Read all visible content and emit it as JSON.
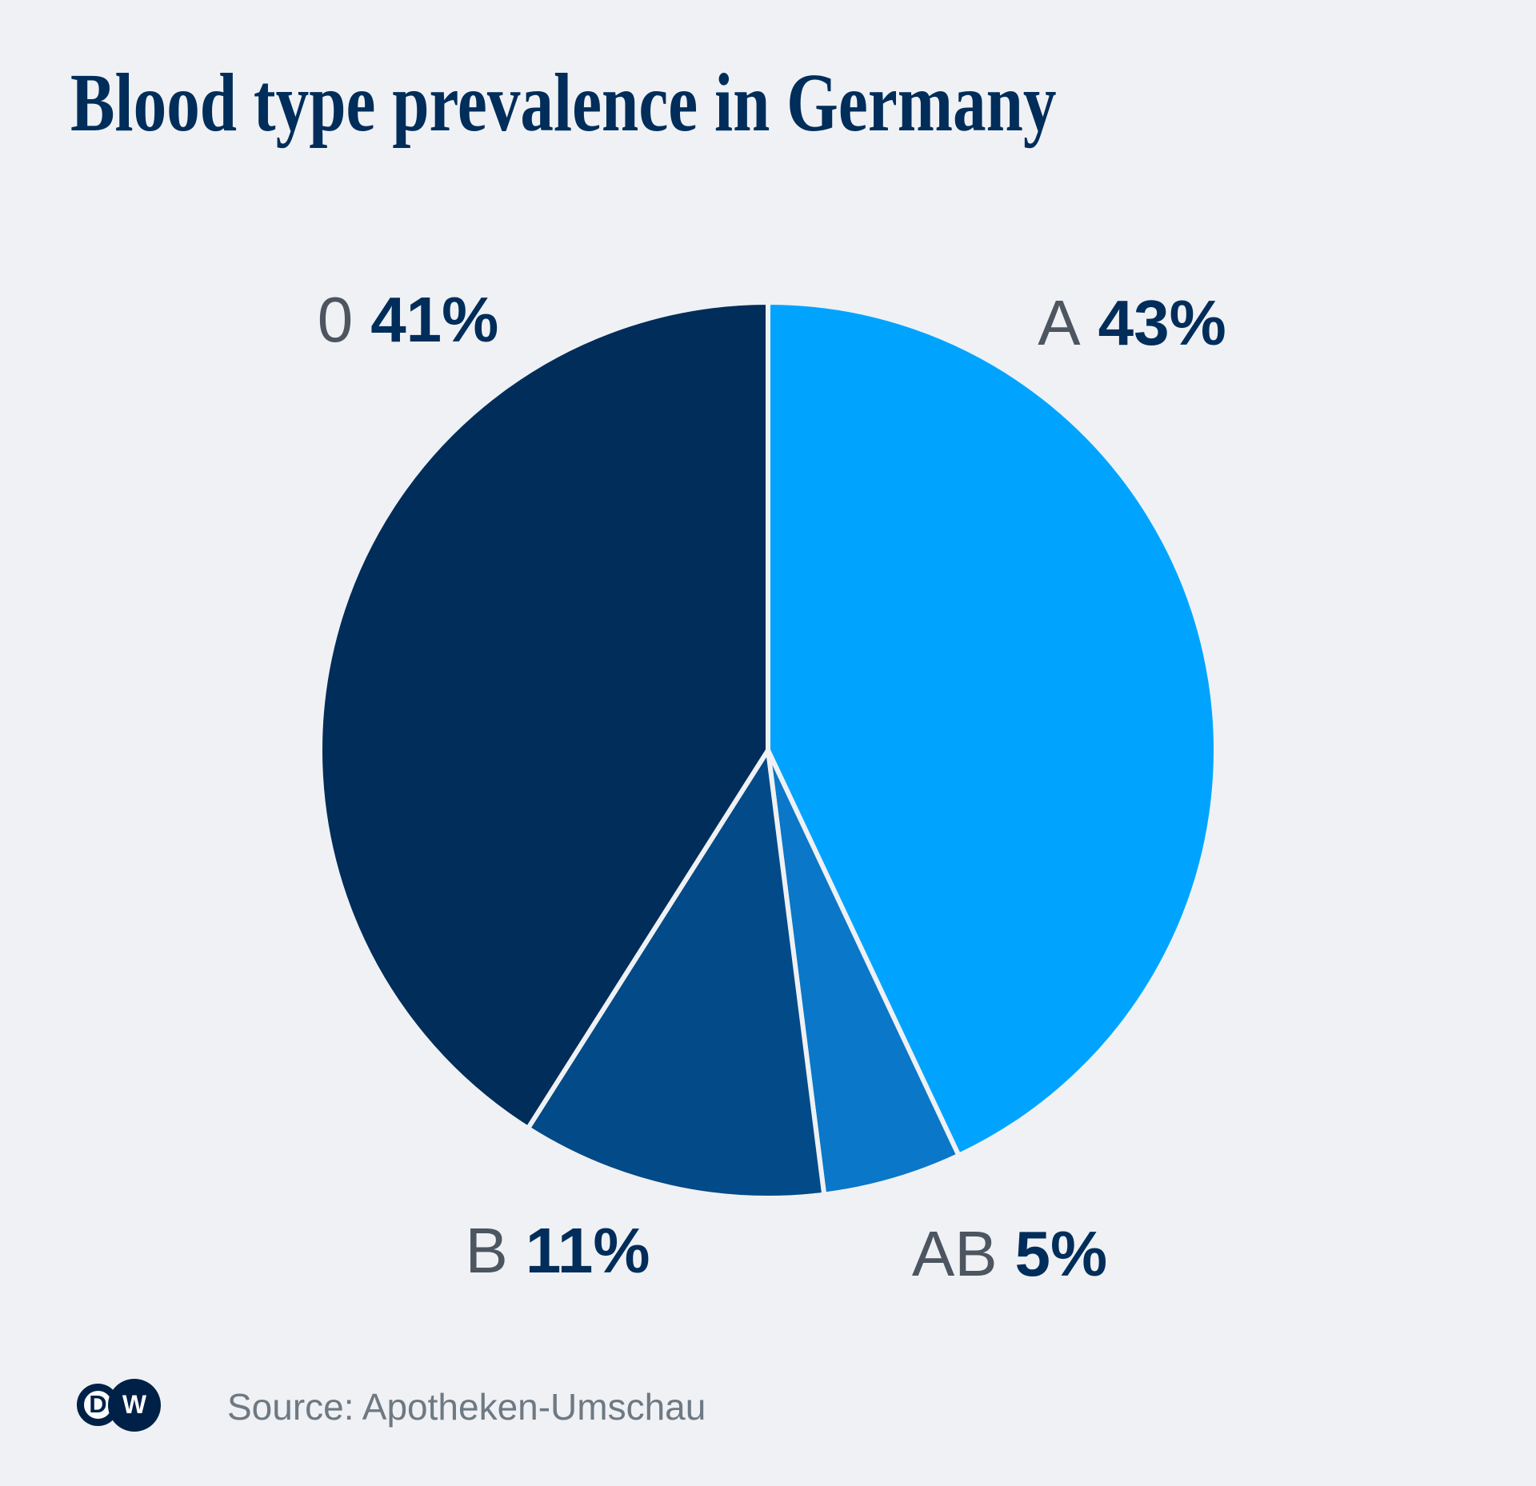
{
  "header": {
    "title": "Blood type prevalence in Germany",
    "title_color": "#002d5a"
  },
  "chart_data": {
    "type": "pie",
    "title": "Blood type prevalence in Germany",
    "unit": "%",
    "direction": "clockwise",
    "start_angle_deg": 0,
    "total": 100,
    "divider_color": "#eff1f4",
    "slices": [
      {
        "label": "A",
        "value": 43,
        "display": "43%",
        "color": "#00a4ff"
      },
      {
        "label": "AB",
        "value": 5,
        "display": "5%",
        "color": "#0a77c8"
      },
      {
        "label": "B",
        "value": 11,
        "display": "11%",
        "color": "#024a88"
      },
      {
        "label": "0",
        "value": 41,
        "display": "41%",
        "color": "#002d5a"
      }
    ],
    "legend_position": "labels-around-pie",
    "label_letter_color": "#4c5560",
    "label_value_color": "#002d5a"
  },
  "footer": {
    "source": "Source: Apotheken-Umschau",
    "logo": {
      "name": "DW",
      "d": "D",
      "w": "W"
    }
  }
}
